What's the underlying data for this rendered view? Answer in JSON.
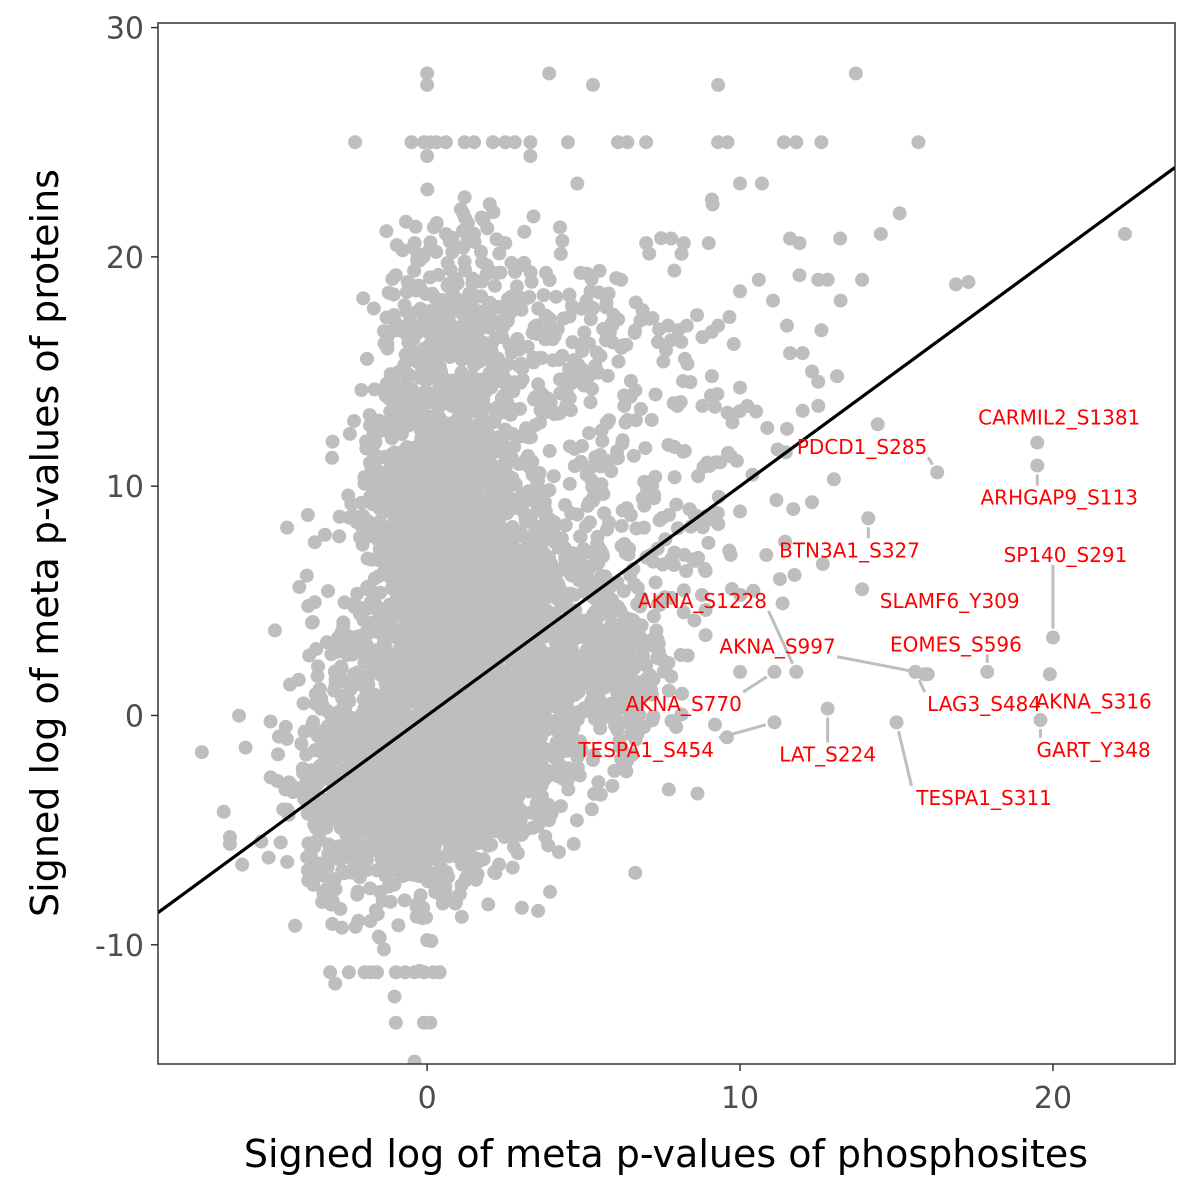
{
  "chart_data": {
    "type": "scatter",
    "title": "",
    "xlabel": "Signed log of meta p-values of phosphosites",
    "ylabel": "Signed log of meta p-values of proteins",
    "xlim": [
      -8.6,
      23.9
    ],
    "ylim": [
      -15.2,
      30.2
    ],
    "xticks": [
      0,
      10,
      20
    ],
    "yticks": [
      -10,
      0,
      10,
      20,
      30
    ],
    "grid": false,
    "point_color": "#bebebe",
    "label_color": "#ff0000",
    "line_color": "#000000",
    "fit_line": {
      "x": [
        -8.6,
        23.9
      ],
      "y": [
        -8.6,
        23.9
      ]
    },
    "highlighted_points": [
      {
        "label": "CARMIL2_S1381",
        "x": 19.5,
        "y": 11.9,
        "lx": 20.2,
        "ly": 13.0,
        "anchor": "middle"
      },
      {
        "label": "PDCD1_S285",
        "x": 16.3,
        "y": 10.6,
        "lx": 13.9,
        "ly": 11.7,
        "anchor": "middle"
      },
      {
        "label": "ARHGAP9_S113",
        "x": 19.5,
        "y": 10.9,
        "lx": 20.2,
        "ly": 9.5,
        "anchor": "middle"
      },
      {
        "label": "BTN3A1_S327",
        "x": 14.1,
        "y": 8.6,
        "lx": 13.5,
        "ly": 7.2,
        "anchor": "middle"
      },
      {
        "label": "SP140_S291",
        "x": 20.0,
        "y": 3.4,
        "lx": 20.4,
        "ly": 7.0,
        "anchor": "middle"
      },
      {
        "label": "SLAMF6_Y309",
        "x": 13.9,
        "y": 5.5,
        "lx": 16.7,
        "ly": 5.0,
        "anchor": "middle"
      },
      {
        "label": "AKNA_S1228",
        "x": 11.8,
        "y": 1.9,
        "lx": 8.8,
        "ly": 5.0,
        "anchor": "middle"
      },
      {
        "label": "EOMES_S596",
        "x": 17.9,
        "y": 1.9,
        "lx": 16.9,
        "ly": 3.1,
        "anchor": "middle"
      },
      {
        "label": "AKNA_S997",
        "x": 16.0,
        "y": 1.8,
        "lx": 11.2,
        "ly": 3.0,
        "anchor": "middle"
      },
      {
        "label": "AKNA_S770",
        "x": 11.1,
        "y": 1.9,
        "lx": 8.2,
        "ly": 0.5,
        "anchor": "middle"
      },
      {
        "label": "LAG3_S484",
        "x": 15.6,
        "y": 1.9,
        "lx": 17.8,
        "ly": 0.5,
        "anchor": "middle"
      },
      {
        "label": "AKNA_S316",
        "x": 19.9,
        "y": 1.8,
        "lx": 21.3,
        "ly": 0.6,
        "anchor": "middle"
      },
      {
        "label": "TESPA1_S454",
        "x": 11.1,
        "y": -0.3,
        "lx": 7.0,
        "ly": -1.5,
        "anchor": "middle"
      },
      {
        "label": "LAT_S224",
        "x": 12.8,
        "y": 0.3,
        "lx": 12.8,
        "ly": -1.7,
        "anchor": "middle"
      },
      {
        "label": "GART_Y348",
        "x": 19.6,
        "y": -0.2,
        "lx": 21.3,
        "ly": -1.5,
        "anchor": "middle"
      },
      {
        "label": "TESPA1_S311",
        "x": 15.0,
        "y": -0.3,
        "lx": 17.8,
        "ly": -3.6,
        "anchor": "middle"
      },
      {
        "label": "",
        "x": 9.2,
        "y": -0.4
      },
      {
        "label": "",
        "x": 10.0,
        "y": 1.9
      },
      {
        "label": "",
        "x": 15.9,
        "y": 1.8
      }
    ],
    "background_clusters": [
      {
        "cx": 0.4,
        "cy": 3.0,
        "sx": 1.4,
        "sy": 4.5,
        "n": 1500
      },
      {
        "cx": -0.6,
        "cy": -3.8,
        "sx": 1.6,
        "sy": 1.8,
        "n": 700
      },
      {
        "cx": 0.9,
        "cy": 10.0,
        "sx": 1.1,
        "sy": 3.2,
        "n": 500
      },
      {
        "cx": 2.3,
        "cy": 1.6,
        "sx": 1.7,
        "sy": 2.8,
        "n": 700
      },
      {
        "cx": 4.7,
        "cy": 5.0,
        "sx": 1.5,
        "sy": 3.5,
        "n": 320
      },
      {
        "cx": 1.1,
        "cy": 17.5,
        "sx": 1.3,
        "sy": 2.3,
        "n": 260
      },
      {
        "cx": -2.6,
        "cy": -2.4,
        "sx": 1.0,
        "sy": 2.8,
        "n": 300
      },
      {
        "cx": 6.2,
        "cy": 2.2,
        "sx": 0.9,
        "sy": 1.5,
        "n": 140
      },
      {
        "cx": 8.5,
        "cy": 10.8,
        "sx": 1.9,
        "sy": 4.2,
        "n": 110
      },
      {
        "cx": 4.5,
        "cy": 15.5,
        "sx": 1.4,
        "sy": 2.2,
        "n": 150
      },
      {
        "cx": -1.0,
        "cy": 10.0,
        "sx": 0.8,
        "sy": 3.0,
        "n": 120
      },
      {
        "cx": 2.4,
        "cy": -2.5,
        "sx": 1.0,
        "sy": 1.0,
        "n": 200
      }
    ],
    "background_points": [
      [
        -7.2,
        -1.6
      ],
      [
        -6.5,
        -4.2
      ],
      [
        -6.3,
        -5.3
      ],
      [
        -6.3,
        -5.6
      ],
      [
        -5.8,
        -1.4
      ],
      [
        -5.3,
        -5.5
      ],
      [
        -5.0,
        -2.7
      ],
      [
        -4.6,
        -4.1
      ],
      [
        -3.8,
        -7.2
      ],
      [
        -3.1,
        -11.2
      ],
      [
        -2.5,
        -11.2
      ],
      [
        -2.0,
        -11.2
      ],
      [
        -1.8,
        -11.2
      ],
      [
        -1.6,
        -11.2
      ],
      [
        -1.0,
        -11.2
      ],
      [
        -0.7,
        -11.2
      ],
      [
        -0.4,
        -11.2
      ],
      [
        -0.1,
        -11.2
      ],
      [
        0.2,
        -11.2
      ],
      [
        0.4,
        -11.2
      ],
      [
        -1.0,
        -13.4
      ],
      [
        -0.1,
        -13.4
      ],
      [
        0.1,
        -13.4
      ],
      [
        0.0,
        -9.8
      ],
      [
        -0.3,
        -8.2
      ],
      [
        0.5,
        -8.2
      ],
      [
        0.9,
        -8.2
      ],
      [
        1.1,
        -7.4
      ],
      [
        2.3,
        -6.5
      ],
      [
        -2.3,
        25.0
      ],
      [
        -0.5,
        25.0
      ],
      [
        -0.1,
        25.0
      ],
      [
        0.1,
        25.0
      ],
      [
        0.3,
        25.0
      ],
      [
        0.6,
        25.0
      ],
      [
        1.2,
        25.0
      ],
      [
        1.5,
        25.0
      ],
      [
        2.1,
        25.0
      ],
      [
        2.5,
        25.0
      ],
      [
        2.8,
        25.0
      ],
      [
        3.3,
        25.0
      ],
      [
        4.5,
        25.0
      ],
      [
        6.1,
        25.0
      ],
      [
        6.4,
        25.0
      ],
      [
        7.0,
        25.0
      ],
      [
        9.3,
        25.0
      ],
      [
        9.6,
        25.0
      ],
      [
        11.4,
        25.0
      ],
      [
        11.8,
        25.0
      ],
      [
        12.6,
        25.0
      ],
      [
        15.7,
        25.0
      ],
      [
        0.0,
        28.0
      ],
      [
        0.0,
        27.5
      ],
      [
        3.9,
        28.0
      ],
      [
        5.3,
        27.5
      ],
      [
        9.3,
        27.5
      ],
      [
        13.7,
        28.0
      ],
      [
        0.0,
        24.4
      ],
      [
        3.3,
        24.4
      ],
      [
        4.8,
        23.2
      ],
      [
        9.1,
        22.5
      ],
      [
        10.0,
        23.2
      ],
      [
        10.7,
        23.2
      ],
      [
        15.1,
        21.9
      ],
      [
        14.5,
        21.0
      ],
      [
        22.3,
        21.0
      ],
      [
        7.0,
        20.6
      ],
      [
        7.8,
        20.8
      ],
      [
        8.2,
        20.6
      ],
      [
        9.0,
        20.6
      ],
      [
        11.6,
        20.8
      ],
      [
        11.9,
        20.6
      ],
      [
        13.2,
        20.8
      ],
      [
        17.3,
        18.9
      ],
      [
        16.9,
        18.8
      ],
      [
        13.9,
        19.0
      ],
      [
        12.5,
        19.0
      ],
      [
        12.8,
        19.0
      ],
      [
        10.6,
        19.0
      ],
      [
        10.0,
        18.5
      ],
      [
        11.9,
        19.2
      ],
      [
        7.9,
        19.4
      ],
      [
        6.2,
        19.0
      ],
      [
        5.8,
        18.4
      ],
      [
        7.1,
        17.3
      ],
      [
        7.7,
        17.0
      ],
      [
        8.3,
        17.0
      ],
      [
        9.3,
        17.0
      ],
      [
        11.5,
        17.0
      ],
      [
        12.6,
        16.8
      ],
      [
        8.8,
        16.5
      ],
      [
        9.8,
        16.2
      ],
      [
        11.6,
        15.8
      ],
      [
        12.0,
        15.8
      ],
      [
        12.3,
        15.0
      ],
      [
        13.1,
        14.8
      ],
      [
        9.1,
        14.8
      ],
      [
        10.0,
        14.3
      ],
      [
        7.3,
        14.0
      ],
      [
        8.0,
        13.5
      ],
      [
        8.8,
        13.5
      ],
      [
        9.6,
        13.2
      ],
      [
        11.5,
        12.5
      ],
      [
        11.2,
        11.6
      ],
      [
        12.5,
        13.5
      ],
      [
        14.4,
        12.7
      ],
      [
        13.0,
        10.3
      ],
      [
        12.3,
        9.3
      ],
      [
        11.7,
        9.0
      ],
      [
        10.0,
        8.9
      ],
      [
        9.9,
        11.1
      ],
      [
        10.4,
        10.5
      ],
      [
        8.5,
        6.8
      ],
      [
        8.9,
        6.3
      ],
      [
        9.7,
        7.0
      ],
      [
        7.3,
        5.8
      ],
      [
        8.2,
        4.5
      ],
      [
        8.9,
        3.5
      ],
      [
        8.9,
        4.6
      ],
      [
        6.2,
        -1.9
      ],
      [
        7.8,
        1.7
      ],
      [
        4.5,
        -2.8
      ],
      [
        3.6,
        -4.0
      ],
      [
        2.0,
        18.0
      ],
      [
        3.8,
        19.3
      ],
      [
        4.9,
        19.3
      ],
      [
        5.9,
        17.1
      ],
      [
        2.5,
        20.6
      ],
      [
        1.5,
        21.0
      ],
      [
        0.6,
        21.0
      ],
      [
        -0.4,
        20.6
      ],
      [
        -1.0,
        19.2
      ],
      [
        1.2,
        22.6
      ],
      [
        2.0,
        22.3
      ],
      [
        1.8,
        21.6
      ]
    ]
  }
}
